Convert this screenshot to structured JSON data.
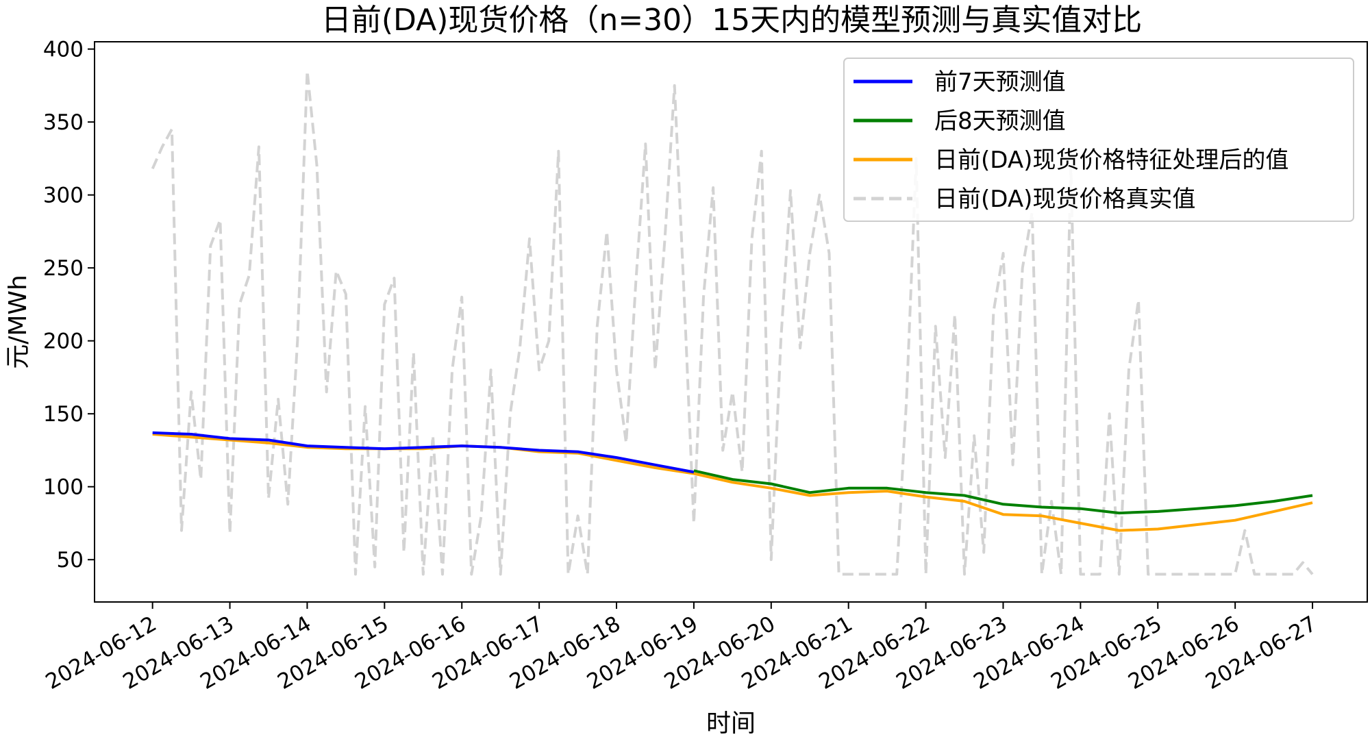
{
  "chart_data": {
    "type": "line",
    "title": "日前(DA)现货价格（n=30）15天内的模型预测与真实值对比",
    "xlabel": "时间",
    "ylabel": "元/MWh",
    "x_ticks": [
      "2024-06-12",
      "2024-06-13",
      "2024-06-14",
      "2024-06-15",
      "2024-06-16",
      "2024-06-17",
      "2024-06-18",
      "2024-06-19",
      "2024-06-20",
      "2024-06-21",
      "2024-06-22",
      "2024-06-23",
      "2024-06-24",
      "2024-06-25",
      "2024-06-26",
      "2024-06-27"
    ],
    "y_ticks": [
      50,
      100,
      150,
      200,
      250,
      300,
      350,
      400
    ],
    "xlim": [
      "2024-06-11T06:00",
      "2024-06-27T17:00"
    ],
    "ylim": [
      21,
      405
    ],
    "grid": false,
    "legend_position": "top-right",
    "series": [
      {
        "name": "前7天预测值",
        "color": "#0000ff",
        "line_style": "solid",
        "points": [
          [
            "2024-06-12T00:00",
            137
          ],
          [
            "2024-06-12T12:00",
            136
          ],
          [
            "2024-06-13T00:00",
            133
          ],
          [
            "2024-06-13T12:00",
            132
          ],
          [
            "2024-06-14T00:00",
            128
          ],
          [
            "2024-06-14T12:00",
            127
          ],
          [
            "2024-06-15T00:00",
            126
          ],
          [
            "2024-06-15T12:00",
            127
          ],
          [
            "2024-06-16T00:00",
            128
          ],
          [
            "2024-06-16T12:00",
            127
          ],
          [
            "2024-06-17T00:00",
            125
          ],
          [
            "2024-06-17T12:00",
            124
          ],
          [
            "2024-06-18T00:00",
            120
          ],
          [
            "2024-06-18T12:00",
            115
          ],
          [
            "2024-06-19T00:00",
            110
          ]
        ]
      },
      {
        "name": "后8天预测值",
        "color": "#008000",
        "line_style": "solid",
        "points": [
          [
            "2024-06-19T00:00",
            111
          ],
          [
            "2024-06-19T12:00",
            105
          ],
          [
            "2024-06-20T00:00",
            102
          ],
          [
            "2024-06-20T12:00",
            96
          ],
          [
            "2024-06-21T00:00",
            99
          ],
          [
            "2024-06-21T12:00",
            99
          ],
          [
            "2024-06-22T00:00",
            96
          ],
          [
            "2024-06-22T12:00",
            94
          ],
          [
            "2024-06-23T00:00",
            88
          ],
          [
            "2024-06-23T12:00",
            86
          ],
          [
            "2024-06-24T00:00",
            85
          ],
          [
            "2024-06-24T12:00",
            82
          ],
          [
            "2024-06-25T00:00",
            83
          ],
          [
            "2024-06-25T12:00",
            85
          ],
          [
            "2024-06-26T00:00",
            87
          ],
          [
            "2024-06-26T12:00",
            90
          ],
          [
            "2024-06-27T00:00",
            94
          ]
        ]
      },
      {
        "name": "日前(DA)现货价格特征处理后的值",
        "color": "#ffa500",
        "line_style": "solid",
        "points": [
          [
            "2024-06-12T00:00",
            136
          ],
          [
            "2024-06-12T12:00",
            134
          ],
          [
            "2024-06-13T00:00",
            132
          ],
          [
            "2024-06-13T12:00",
            130
          ],
          [
            "2024-06-14T00:00",
            127
          ],
          [
            "2024-06-14T12:00",
            126
          ],
          [
            "2024-06-15T00:00",
            126
          ],
          [
            "2024-06-15T12:00",
            126
          ],
          [
            "2024-06-16T00:00",
            128
          ],
          [
            "2024-06-16T12:00",
            127
          ],
          [
            "2024-06-17T00:00",
            124
          ],
          [
            "2024-06-17T12:00",
            123
          ],
          [
            "2024-06-18T00:00",
            118
          ],
          [
            "2024-06-18T12:00",
            113
          ],
          [
            "2024-06-19T00:00",
            109
          ],
          [
            "2024-06-19T12:00",
            103
          ],
          [
            "2024-06-20T00:00",
            99
          ],
          [
            "2024-06-20T12:00",
            94
          ],
          [
            "2024-06-21T00:00",
            96
          ],
          [
            "2024-06-21T12:00",
            97
          ],
          [
            "2024-06-22T00:00",
            93
          ],
          [
            "2024-06-22T12:00",
            90
          ],
          [
            "2024-06-23T00:00",
            81
          ],
          [
            "2024-06-23T12:00",
            80
          ],
          [
            "2024-06-24T00:00",
            75
          ],
          [
            "2024-06-24T12:00",
            70
          ],
          [
            "2024-06-25T00:00",
            71
          ],
          [
            "2024-06-25T12:00",
            74
          ],
          [
            "2024-06-26T00:00",
            77
          ],
          [
            "2024-06-26T12:00",
            83
          ],
          [
            "2024-06-27T00:00",
            89
          ]
        ]
      },
      {
        "name": "日前(DA)现货价格真实值",
        "color": "#d3d3d3",
        "line_style": "dashed",
        "points": [
          [
            "2024-06-12T00:00",
            318
          ],
          [
            "2024-06-12T03:00",
            333
          ],
          [
            "2024-06-12T06:00",
            345
          ],
          [
            "2024-06-12T09:00",
            70
          ],
          [
            "2024-06-12T12:00",
            165
          ],
          [
            "2024-06-12T15:00",
            105
          ],
          [
            "2024-06-12T18:00",
            265
          ],
          [
            "2024-06-12T21:00",
            283
          ],
          [
            "2024-06-13T00:00",
            68
          ],
          [
            "2024-06-13T03:00",
            225
          ],
          [
            "2024-06-13T06:00",
            245
          ],
          [
            "2024-06-13T09:00",
            333
          ],
          [
            "2024-06-13T12:00",
            92
          ],
          [
            "2024-06-13T15:00",
            160
          ],
          [
            "2024-06-13T18:00",
            88
          ],
          [
            "2024-06-13T21:00",
            200
          ],
          [
            "2024-06-14T00:00",
            385
          ],
          [
            "2024-06-14T03:00",
            320
          ],
          [
            "2024-06-14T06:00",
            165
          ],
          [
            "2024-06-14T09:00",
            248
          ],
          [
            "2024-06-14T12:00",
            232
          ],
          [
            "2024-06-14T15:00",
            40
          ],
          [
            "2024-06-14T18:00",
            155
          ],
          [
            "2024-06-14T21:00",
            45
          ],
          [
            "2024-06-15T00:00",
            225
          ],
          [
            "2024-06-15T03:00",
            243
          ],
          [
            "2024-06-15T06:00",
            55
          ],
          [
            "2024-06-15T09:00",
            192
          ],
          [
            "2024-06-15T12:00",
            40
          ],
          [
            "2024-06-15T15:00",
            135
          ],
          [
            "2024-06-15T18:00",
            40
          ],
          [
            "2024-06-15T21:00",
            180
          ],
          [
            "2024-06-16T00:00",
            230
          ],
          [
            "2024-06-16T03:00",
            40
          ],
          [
            "2024-06-16T06:00",
            80
          ],
          [
            "2024-06-16T09:00",
            180
          ],
          [
            "2024-06-16T12:00",
            40
          ],
          [
            "2024-06-16T15:00",
            150
          ],
          [
            "2024-06-16T18:00",
            195
          ],
          [
            "2024-06-16T21:00",
            270
          ],
          [
            "2024-06-17T00:00",
            180
          ],
          [
            "2024-06-17T03:00",
            200
          ],
          [
            "2024-06-17T06:00",
            330
          ],
          [
            "2024-06-17T09:00",
            40
          ],
          [
            "2024-06-17T12:00",
            80
          ],
          [
            "2024-06-17T15:00",
            40
          ],
          [
            "2024-06-17T18:00",
            210
          ],
          [
            "2024-06-17T21:00",
            275
          ],
          [
            "2024-06-18T00:00",
            180
          ],
          [
            "2024-06-18T03:00",
            130
          ],
          [
            "2024-06-18T06:00",
            240
          ],
          [
            "2024-06-18T09:00",
            335
          ],
          [
            "2024-06-18T12:00",
            180
          ],
          [
            "2024-06-18T15:00",
            270
          ],
          [
            "2024-06-18T18:00",
            375
          ],
          [
            "2024-06-18T21:00",
            230
          ],
          [
            "2024-06-19T00:00",
            75
          ],
          [
            "2024-06-19T03:00",
            230
          ],
          [
            "2024-06-19T06:00",
            305
          ],
          [
            "2024-06-19T09:00",
            125
          ],
          [
            "2024-06-19T12:00",
            165
          ],
          [
            "2024-06-19T15:00",
            110
          ],
          [
            "2024-06-19T18:00",
            270
          ],
          [
            "2024-06-19T21:00",
            330
          ],
          [
            "2024-06-20T00:00",
            50
          ],
          [
            "2024-06-20T03:00",
            200
          ],
          [
            "2024-06-20T06:00",
            303
          ],
          [
            "2024-06-20T09:00",
            195
          ],
          [
            "2024-06-20T12:00",
            260
          ],
          [
            "2024-06-20T15:00",
            300
          ],
          [
            "2024-06-20T18:00",
            260
          ],
          [
            "2024-06-20T21:00",
            40
          ],
          [
            "2024-06-21T00:00",
            40
          ],
          [
            "2024-06-21T03:00",
            40
          ],
          [
            "2024-06-21T06:00",
            40
          ],
          [
            "2024-06-21T09:00",
            40
          ],
          [
            "2024-06-21T12:00",
            40
          ],
          [
            "2024-06-21T15:00",
            40
          ],
          [
            "2024-06-21T18:00",
            160
          ],
          [
            "2024-06-21T21:00",
            325
          ],
          [
            "2024-06-22T00:00",
            40
          ],
          [
            "2024-06-22T03:00",
            210
          ],
          [
            "2024-06-22T06:00",
            120
          ],
          [
            "2024-06-22T09:00",
            218
          ],
          [
            "2024-06-22T12:00",
            40
          ],
          [
            "2024-06-22T15:00",
            135
          ],
          [
            "2024-06-22T18:00",
            55
          ],
          [
            "2024-06-22T21:00",
            220
          ],
          [
            "2024-06-23T00:00",
            260
          ],
          [
            "2024-06-23T03:00",
            115
          ],
          [
            "2024-06-23T06:00",
            250
          ],
          [
            "2024-06-23T09:00",
            288
          ],
          [
            "2024-06-23T12:00",
            40
          ],
          [
            "2024-06-23T15:00",
            90
          ],
          [
            "2024-06-23T18:00",
            40
          ],
          [
            "2024-06-23T21:00",
            320
          ],
          [
            "2024-06-24T00:00",
            40
          ],
          [
            "2024-06-24T03:00",
            40
          ],
          [
            "2024-06-24T06:00",
            40
          ],
          [
            "2024-06-24T09:00",
            150
          ],
          [
            "2024-06-24T12:00",
            40
          ],
          [
            "2024-06-24T15:00",
            180
          ],
          [
            "2024-06-24T18:00",
            228
          ],
          [
            "2024-06-24T21:00",
            40
          ],
          [
            "2024-06-25T00:00",
            40
          ],
          [
            "2024-06-25T06:00",
            40
          ],
          [
            "2024-06-25T12:00",
            40
          ],
          [
            "2024-06-25T18:00",
            40
          ],
          [
            "2024-06-26T00:00",
            40
          ],
          [
            "2024-06-26T03:00",
            70
          ],
          [
            "2024-06-26T06:00",
            40
          ],
          [
            "2024-06-26T12:00",
            40
          ],
          [
            "2024-06-26T18:00",
            40
          ],
          [
            "2024-06-26T21:00",
            48
          ],
          [
            "2024-06-27T00:00",
            40
          ]
        ]
      }
    ]
  }
}
